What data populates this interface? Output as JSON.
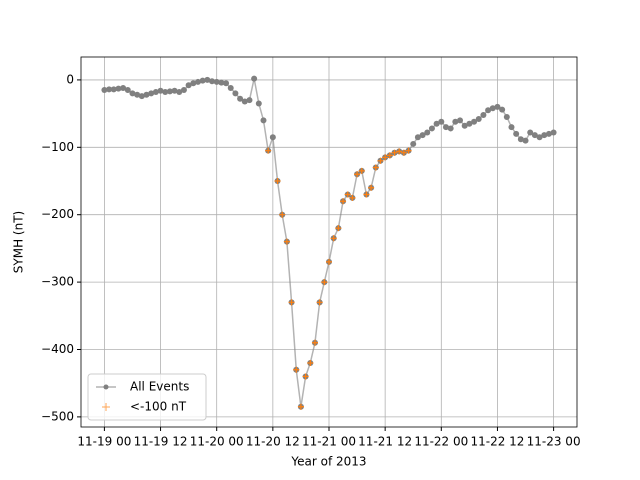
{
  "chart_data": {
    "type": "line",
    "xlabel": "Year of 2013",
    "ylabel": "SYMH (nT)",
    "x": [
      "11-19 00",
      "11-19 01",
      "11-19 02",
      "11-19 03",
      "11-19 04",
      "11-19 05",
      "11-19 06",
      "11-19 07",
      "11-19 08",
      "11-19 09",
      "11-19 10",
      "11-19 11",
      "11-19 12",
      "11-19 13",
      "11-19 14",
      "11-19 15",
      "11-19 16",
      "11-19 17",
      "11-19 18",
      "11-19 19",
      "11-19 20",
      "11-19 21",
      "11-19 22",
      "11-19 23",
      "11-20 00",
      "11-20 01",
      "11-20 02",
      "11-20 03",
      "11-20 04",
      "11-20 05",
      "11-20 06",
      "11-20 07",
      "11-20 08",
      "11-20 09",
      "11-20 10",
      "11-20 11",
      "11-20 12",
      "11-20 13",
      "11-20 14",
      "11-20 15",
      "11-20 16",
      "11-20 17",
      "11-20 18",
      "11-20 19",
      "11-20 20",
      "11-20 21",
      "11-20 22",
      "11-20 23",
      "11-21 00",
      "11-21 01",
      "11-21 02",
      "11-21 03",
      "11-21 04",
      "11-21 05",
      "11-21 06",
      "11-21 07",
      "11-21 08",
      "11-21 09",
      "11-21 10",
      "11-21 11",
      "11-21 12",
      "11-21 13",
      "11-21 14",
      "11-21 15",
      "11-21 16",
      "11-21 17",
      "11-21 18",
      "11-21 19",
      "11-21 20",
      "11-21 21",
      "11-21 22",
      "11-21 23",
      "11-22 00",
      "11-22 01",
      "11-22 02",
      "11-22 03",
      "11-22 04",
      "11-22 05",
      "11-22 06",
      "11-22 07",
      "11-22 08",
      "11-22 09",
      "11-22 10",
      "11-22 11",
      "11-22 12",
      "11-22 13",
      "11-22 14",
      "11-22 15",
      "11-22 16",
      "11-22 17",
      "11-22 18",
      "11-22 19",
      "11-22 20",
      "11-22 21",
      "11-22 22",
      "11-22 23",
      "11-23 00"
    ],
    "series": [
      {
        "name": "All Events",
        "color": "#808080",
        "marker": "dot",
        "values": [
          -15,
          -14,
          -14,
          -13,
          -12,
          -15,
          -20,
          -22,
          -24,
          -22,
          -20,
          -18,
          -16,
          -18,
          -17,
          -16,
          -18,
          -15,
          -8,
          -5,
          -3,
          -1,
          0,
          -2,
          -3,
          -4,
          -5,
          -12,
          -20,
          -28,
          -32,
          -30,
          2,
          -35,
          -60,
          -105,
          -85,
          -150,
          -200,
          -240,
          -330,
          -430,
          -485,
          -440,
          -420,
          -390,
          -330,
          -300,
          -270,
          -235,
          -220,
          -180,
          -170,
          -175,
          -140,
          -135,
          -170,
          -160,
          -130,
          -120,
          -115,
          -112,
          -108,
          -106,
          -108,
          -105,
          -95,
          -85,
          -82,
          -78,
          -72,
          -65,
          -62,
          -70,
          -72,
          -62,
          -60,
          -68,
          -65,
          -62,
          -58,
          -52,
          -45,
          -42,
          -40,
          -44,
          -55,
          -70,
          -80,
          -88,
          -90,
          -78,
          -82,
          -85,
          -82,
          -80,
          -78
        ]
      },
      {
        "name": "<-100 nT",
        "color": "#ff7f0e",
        "marker": "plus",
        "values": [
          null,
          null,
          null,
          null,
          null,
          null,
          null,
          null,
          null,
          null,
          null,
          null,
          null,
          null,
          null,
          null,
          null,
          null,
          null,
          null,
          null,
          null,
          null,
          null,
          null,
          null,
          null,
          null,
          null,
          null,
          null,
          null,
          null,
          null,
          null,
          -105,
          null,
          -150,
          -200,
          -240,
          -330,
          -430,
          -485,
          -440,
          -420,
          -390,
          -330,
          -300,
          -270,
          -235,
          -220,
          -180,
          -170,
          -175,
          -140,
          -135,
          -170,
          -160,
          -130,
          -120,
          -115,
          -112,
          -108,
          -106,
          -108,
          -105,
          null,
          null,
          null,
          null,
          null,
          null,
          null,
          null,
          null,
          null,
          null,
          null,
          null,
          null,
          null,
          null,
          null,
          null,
          null,
          null,
          null,
          null,
          null,
          null,
          null,
          null,
          null,
          null,
          null,
          null,
          null
        ]
      }
    ],
    "xlim": [
      "11-18 19",
      "11-23 05"
    ],
    "xticks": [
      "11-19 00",
      "11-19 12",
      "11-20 00",
      "11-20 12",
      "11-21 00",
      "11-21 12",
      "11-22 00",
      "11-22 12",
      "11-23 00"
    ],
    "ylim": [
      -515,
      34
    ],
    "yticks": [
      {
        "value": -500,
        "label": "−500"
      },
      {
        "value": -400,
        "label": "−400"
      },
      {
        "value": -300,
        "label": "−300"
      },
      {
        "value": -200,
        "label": "−200"
      },
      {
        "value": -100,
        "label": "−100"
      },
      0
    ],
    "grid": true,
    "legend": "lower left"
  }
}
